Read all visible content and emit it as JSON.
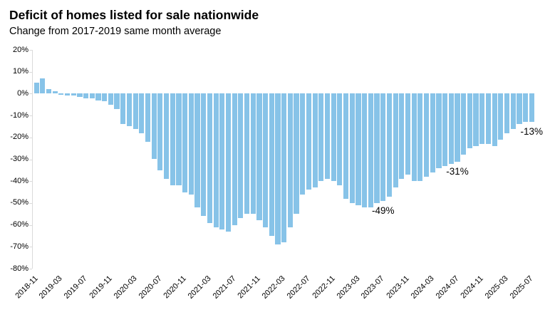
{
  "title": "Deficit of homes listed for sale nationwide",
  "subtitle": "Change from 2017-2019 same month average",
  "colors": {
    "bar": "#87c3e8",
    "axis": "#dadada",
    "text": "#000000",
    "background": "#ffffff"
  },
  "chart_data": {
    "type": "bar",
    "title": "Deficit of homes listed for sale nationwide",
    "subtitle": "Change from 2017-2019 same month average",
    "xlabel": "",
    "ylabel": "",
    "ylim": [
      -80,
      20
    ],
    "ytick_step": 10,
    "ytick_labels": [
      "20%",
      "10%",
      "0%",
      "-10%",
      "-20%",
      "-30%",
      "-40%",
      "-50%",
      "-60%",
      "-70%",
      "-80%"
    ],
    "xtick_every": 4,
    "grid": false,
    "legend": "none",
    "x": [
      "2018-11",
      "2018-12",
      "2019-01",
      "2019-02",
      "2019-03",
      "2019-04",
      "2019-05",
      "2019-06",
      "2019-07",
      "2019-08",
      "2019-09",
      "2019-10",
      "2019-11",
      "2019-12",
      "2020-01",
      "2020-02",
      "2020-03",
      "2020-04",
      "2020-05",
      "2020-06",
      "2020-07",
      "2020-08",
      "2020-09",
      "2020-10",
      "2020-11",
      "2020-12",
      "2021-01",
      "2021-02",
      "2021-03",
      "2021-04",
      "2021-05",
      "2021-06",
      "2021-07",
      "2021-08",
      "2021-09",
      "2021-10",
      "2021-11",
      "2021-12",
      "2022-01",
      "2022-02",
      "2022-03",
      "2022-04",
      "2022-05",
      "2022-06",
      "2022-07",
      "2022-08",
      "2022-09",
      "2022-10",
      "2022-11",
      "2022-12",
      "2023-01",
      "2023-02",
      "2023-03",
      "2023-04",
      "2023-05",
      "2023-06",
      "2023-07",
      "2023-08",
      "2023-09",
      "2023-10",
      "2023-11",
      "2023-12",
      "2024-01",
      "2024-02",
      "2024-03",
      "2024-04",
      "2024-05",
      "2024-06",
      "2024-07",
      "2024-08",
      "2024-09",
      "2024-10",
      "2024-11",
      "2024-12",
      "2025-01",
      "2025-02",
      "2025-03",
      "2025-04",
      "2025-05",
      "2025-06",
      "2025-07"
    ],
    "values": [
      5,
      7,
      2,
      1,
      -0.5,
      -1,
      -1,
      -1.5,
      -2,
      -2,
      -3,
      -3.5,
      -5,
      -7,
      -14,
      -15,
      -16,
      -18,
      -22,
      -30,
      -35,
      -39,
      -42,
      -42,
      -45,
      -46,
      -52,
      -56,
      -59,
      -61,
      -62,
      -63,
      -60,
      -57,
      -55,
      -55,
      -58,
      -61,
      -65,
      -69,
      -68,
      -61,
      -55,
      -46,
      -44,
      -43,
      -40,
      -39,
      -40,
      -42,
      -48,
      -50,
      -51,
      -52,
      -52,
      -50,
      -49,
      -47,
      -43,
      -39,
      -37,
      -40,
      -40,
      -38,
      -36,
      -34,
      -33,
      -32,
      -31,
      -28,
      -25,
      -24,
      -23,
      -23,
      -24,
      -21,
      -18,
      -16,
      -14,
      -13,
      -13
    ],
    "annotations": [
      {
        "label": "-49%",
        "month": "2023-07"
      },
      {
        "label": "-31%",
        "month": "2024-07"
      },
      {
        "label": "-13%",
        "month": "2025-07"
      }
    ]
  }
}
